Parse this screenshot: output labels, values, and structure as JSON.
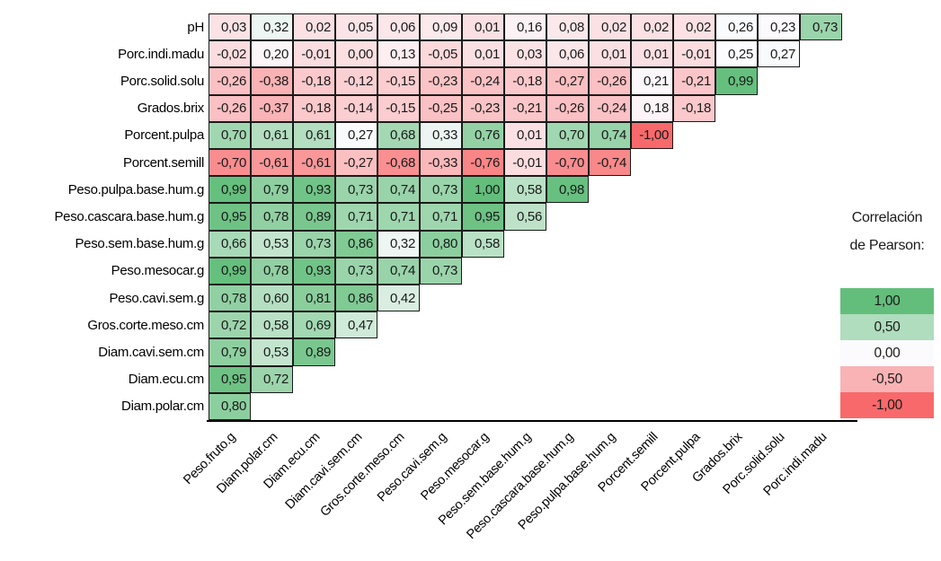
{
  "chart_data": {
    "type": "heatmap",
    "title": "",
    "rows": [
      "pH",
      "Porc.indi.madu",
      "Porc.solid.solu",
      "Grados.brix",
      "Porcent.pulpa",
      "Porcent.semill",
      "Peso.pulpa.base.hum.g",
      "Peso.cascara.base.hum.g",
      "Peso.sem.base.hum.g",
      "Peso.mesocar.g",
      "Peso.cavi.sem.g",
      "Gros.corte.meso.cm",
      "Diam.cavi.sem.cm",
      "Diam.ecu.cm",
      "Diam.polar.cm"
    ],
    "columns": [
      "Peso.fruto.g",
      "Diam.polar.cm",
      "Diam.ecu.cm",
      "Diam.cavi.sem.cm",
      "Gros.corte.meso.cm",
      "Peso.cavi.sem.g",
      "Peso.mesocar.g",
      "Peso.sem.base.hum.g",
      "Peso.cascara.base.hum.g",
      "Peso.pulpa.base.hum.g",
      "Porcent.semill",
      "Porcent.pulpa",
      "Grados.brix",
      "Porc.solid.solu",
      "Porc.indi.madu"
    ],
    "values": [
      [
        0.03,
        0.32,
        0.02,
        0.05,
        0.06,
        0.09,
        0.01,
        0.16,
        0.08,
        0.02,
        0.02,
        0.02,
        0.26,
        0.23,
        0.73
      ],
      [
        -0.02,
        0.2,
        -0.01,
        0.0,
        0.13,
        -0.05,
        0.01,
        0.03,
        0.06,
        0.01,
        0.01,
        -0.01,
        0.25,
        0.27
      ],
      [
        -0.26,
        -0.38,
        -0.18,
        -0.12,
        -0.15,
        -0.23,
        -0.24,
        -0.18,
        -0.27,
        -0.26,
        0.21,
        -0.21,
        0.99
      ],
      [
        -0.26,
        -0.37,
        -0.18,
        -0.14,
        -0.15,
        -0.25,
        -0.23,
        -0.21,
        -0.26,
        -0.24,
        0.18,
        -0.18
      ],
      [
        0.7,
        0.61,
        0.61,
        0.27,
        0.68,
        0.33,
        0.76,
        0.01,
        0.7,
        0.74,
        -1.0
      ],
      [
        -0.7,
        -0.61,
        -0.61,
        -0.27,
        -0.68,
        -0.33,
        -0.76,
        -0.01,
        -0.7,
        -0.74
      ],
      [
        0.99,
        0.79,
        0.93,
        0.73,
        0.74,
        0.73,
        1.0,
        0.58,
        0.98
      ],
      [
        0.95,
        0.78,
        0.89,
        0.71,
        0.71,
        0.71,
        0.95,
        0.56
      ],
      [
        0.66,
        0.53,
        0.73,
        0.86,
        0.32,
        0.8,
        0.58
      ],
      [
        0.99,
        0.78,
        0.93,
        0.73,
        0.74,
        0.73
      ],
      [
        0.78,
        0.6,
        0.81,
        0.86,
        0.42
      ],
      [
        0.72,
        0.58,
        0.69,
        0.47
      ],
      [
        0.79,
        0.53,
        0.89
      ],
      [
        0.95,
        0.72
      ],
      [
        0.8
      ]
    ],
    "value_decimal_separator": ",",
    "color_scale": {
      "min_value": -1.0,
      "min_color": "#F8696B",
      "mid_value": 0.25,
      "mid_color": "#FCFCFF",
      "max_value": 1.0,
      "max_color": "#63BE7B"
    },
    "grid_border_color": "#1a1a1a",
    "legend": {
      "title_line1": "Correlación",
      "title_line2": "de Pearson:",
      "entries": [
        {
          "label": "1,00",
          "value": 1.0,
          "color": "#63BE7B"
        },
        {
          "label": "0,50",
          "value": 0.5,
          "color": "#AFDDBD"
        },
        {
          "label": "0,00",
          "value": 0.0,
          "color": "#FBFBFE"
        },
        {
          "label": "-0,50",
          "value": -0.5,
          "color": "#F9B3B5"
        },
        {
          "label": "-1,00",
          "value": -1.0,
          "color": "#F8696B"
        }
      ]
    }
  }
}
